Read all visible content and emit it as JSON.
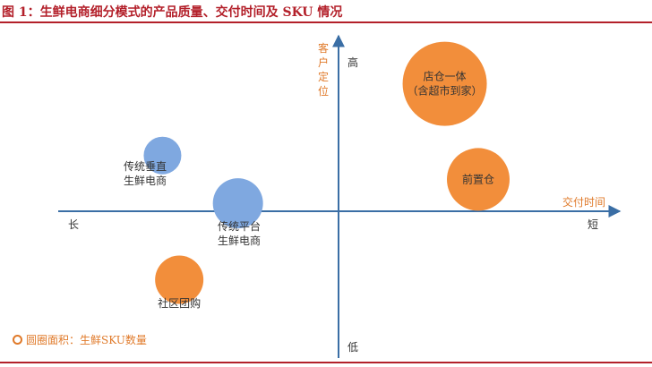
{
  "header": {
    "title": "图 1：生鲜电商细分模式的产品质量、交付时间及 SKU 情况"
  },
  "colors": {
    "accent": "#b3202a",
    "axis": "#3a6ea5",
    "orange": "#f28e3b",
    "blue": "#7fa8e0",
    "axis_title": "#e07a2a"
  },
  "chart_data": {
    "type": "scatter",
    "bubble": true,
    "x_axis": {
      "title": "交付时间",
      "neg_label": "长",
      "pos_label": "短"
    },
    "y_axis": {
      "title": "客户定位",
      "pos_label": "高",
      "neg_label": "低"
    },
    "xlim": [
      -10,
      10
    ],
    "ylim": [
      -10,
      10
    ],
    "grid": false,
    "legend": {
      "position": "bottom-left",
      "text": "圆圈面积：生鲜SKU数量"
    },
    "points": [
      {
        "label_lines": [
          "店仓一体",
          "（含超市到家）"
        ],
        "x": 3.8,
        "y": 8.0,
        "size": 47,
        "color": "#f28e3b"
      },
      {
        "label_lines": [
          "前置仓"
        ],
        "x": 5.0,
        "y": 2.0,
        "size": 35,
        "color": "#f28e3b"
      },
      {
        "label_lines": [
          "传统垂直",
          "生鲜电商"
        ],
        "x": -6.3,
        "y": 3.5,
        "size": 21,
        "color": "#7fa8e0"
      },
      {
        "label_lines": [
          "传统平台",
          "生鲜电商"
        ],
        "x": -3.6,
        "y": 0.5,
        "size": 28,
        "color": "#7fa8e0"
      },
      {
        "label_lines": [
          "社区团购"
        ],
        "x": -5.7,
        "y": -4.3,
        "size": 27,
        "color": "#f28e3b"
      }
    ]
  }
}
